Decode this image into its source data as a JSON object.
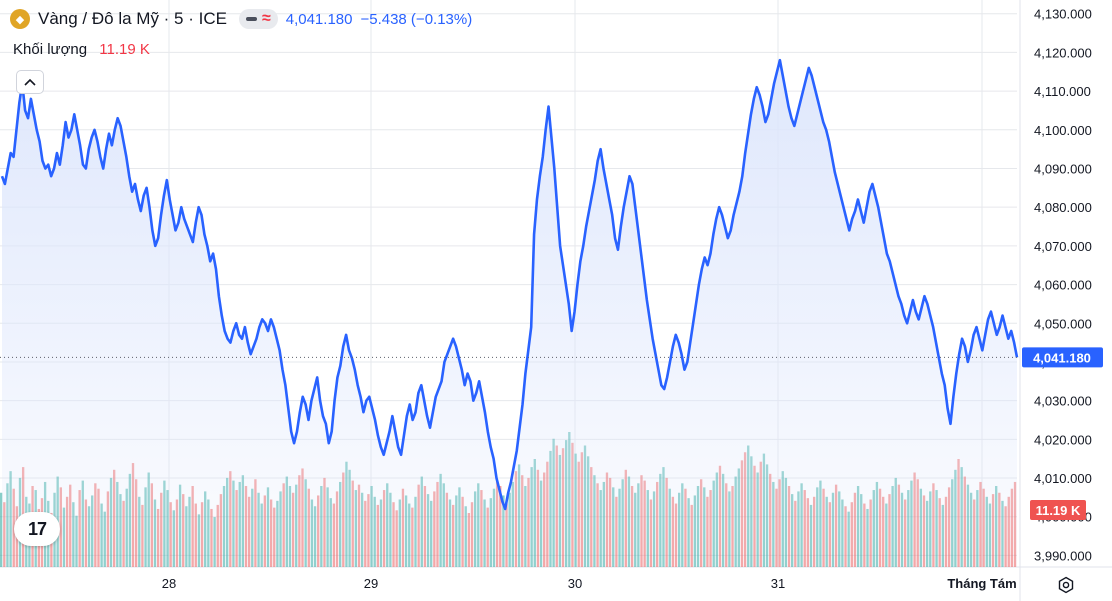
{
  "legend": {
    "symbol_name": "Vàng / Đô la Mỹ · 5 · ICE",
    "last_price": "4,041.180",
    "change": "−5.438 (−0.13%)"
  },
  "volume_legend": {
    "label": "Khối lượng",
    "value": "11.19 K"
  },
  "colors": {
    "price_line": "#2962ff",
    "area_fill": "#dde6fc",
    "volume_up": "#26a69a",
    "volume_down": "#ef5350",
    "grid": "#e6e8ec",
    "axis_text": "#131722"
  },
  "icons": {
    "symbol": "gold-coin-icon",
    "collapse": "chevron-up-icon",
    "logo": "tradingview-logo-icon",
    "settings": "gear-icon"
  },
  "chart_data": {
    "type": "line",
    "title": "Vàng / Đô la Mỹ · 5 · ICE",
    "xlabel": "",
    "ylabel": "",
    "x_ticks": [
      "28",
      "29",
      "30",
      "31",
      "Tháng Tám"
    ],
    "y_ticks": [
      "3,990.000",
      "4,000.000",
      "4,010.000",
      "4,020.000",
      "4,030.000",
      "4,040.000",
      "4,050.000",
      "4,060.000",
      "4,070.000",
      "4,080.000",
      "4,090.000",
      "4,100.000",
      "4,110.000",
      "4,120.000",
      "4,130.000"
    ],
    "ylim": [
      3987,
      4132
    ],
    "grid": true,
    "current_price_label": "4,041.180",
    "current_volume_label": "11.19 K",
    "series": [
      {
        "values": [
          4088,
          4086,
          4090,
          4094,
          4093,
          4100,
          4107,
          4112,
          4105,
          4103,
          4108,
          4104,
          4100,
          4097,
          4092,
          4090,
          4091,
          4088,
          4090,
          4094,
          4091,
          4096,
          4102,
          4098,
          4100,
          4104,
          4100,
          4096,
          4091,
          4090,
          4095,
          4098,
          4100,
          4097,
          4093,
          4090,
          4095,
          4099,
          4096,
          4100,
          4103,
          4101,
          4097,
          4093,
          4088,
          4084,
          4086,
          4082,
          4079,
          4083,
          4085,
          4080,
          4074,
          4070,
          4072,
          4078,
          4083,
          4087,
          4082,
          4078,
          4074,
          4076,
          4080,
          4077,
          4075,
          4073,
          4071,
          4076,
          4080,
          4078,
          4073,
          4070,
          4066,
          4068,
          4064,
          4057,
          4052,
          4048,
          4046,
          4045,
          4048,
          4050,
          4047,
          4046,
          4049,
          4045,
          4042,
          4044,
          4046,
          4049,
          4051,
          4050,
          4048,
          4051,
          4049,
          4046,
          4043,
          4038,
          4034,
          4028,
          4022,
          4019,
          4022,
          4027,
          4031,
          4029,
          4025,
          4030,
          4033,
          4036,
          4030,
          4026,
          4024,
          4019,
          4022,
          4030,
          4036,
          4039,
          4044,
          4047,
          4043,
          4041,
          4038,
          4034,
          4031,
          4027,
          4030,
          4031,
          4028,
          4025,
          4021,
          4018,
          4016,
          4019,
          4022,
          4026,
          4022,
          4018,
          4016,
          4021,
          4026,
          4029,
          4025,
          4027,
          4032,
          4034,
          4030,
          4026,
          4023,
          4027,
          4031,
          4033,
          4035,
          4040,
          4042,
          4044,
          4046,
          4044,
          4041,
          4038,
          4034,
          4037,
          4035,
          4030,
          4032,
          4035,
          4031,
          4027,
          4022,
          4018,
          4015,
          4010,
          4007,
          4004,
          4002,
          4006,
          4009,
          4013,
          4017,
          4023,
          4029,
          4037,
          4043,
          4049,
          4073,
          4082,
          4088,
          4093,
          4100,
          4106,
          4098,
          4090,
          4080,
          4070,
          4065,
          4060,
          4055,
          4048,
          4053,
          4060,
          4066,
          4070,
          4075,
          4079,
          4083,
          4087,
          4092,
          4095,
          4090,
          4086,
          4082,
          4078,
          4072,
          4069,
          4075,
          4080,
          4084,
          4088,
          4086,
          4080,
          4074,
          4068,
          4062,
          4056,
          4051,
          4046,
          4042,
          4038,
          4034,
          4033,
          4036,
          4040,
          4044,
          4047,
          4045,
          4042,
          4038,
          4040,
          4045,
          4050,
          4055,
          4060,
          4064,
          4067,
          4065,
          4068,
          4073,
          4077,
          4080,
          4078,
          4075,
          4072,
          4074,
          4078,
          4081,
          4084,
          4088,
          4094,
          4099,
          4104,
          4108,
          4111,
          4109,
          4106,
          4102,
          4104,
          4108,
          4112,
          4115,
          4118,
          4114,
          4110,
          4106,
          4103,
          4101,
          4104,
          4107,
          4110,
          4113,
          4116,
          4114,
          4111,
          4108,
          4105,
          4102,
          4100,
          4097,
          4093,
          4089,
          4086,
          4083,
          4080,
          4077,
          4074,
          4077,
          4079,
          4082,
          4079,
          4076,
          4080,
          4084,
          4086,
          4083,
          4080,
          4076,
          4072,
          4068,
          4066,
          4063,
          4060,
          4057,
          4055,
          4052,
          4050,
          4053,
          4056,
          4053,
          4051,
          4054,
          4057,
          4055,
          4052,
          4049,
          4045,
          4041,
          4037,
          4034,
          4028,
          4024,
          4031,
          4037,
          4042,
          4046,
          4044,
          4040,
          4043,
          4047,
          4049,
          4046,
          4043,
          4047,
          4051,
          4053,
          4050,
          4047,
          4049,
          4052,
          4049,
          4046,
          4048,
          4045,
          4041.18
        ],
        "color": "#2962ff"
      }
    ],
    "volume": [
      0.55,
      0.48,
      0.62,
      0.71,
      0.58,
      0.45,
      0.66,
      0.74,
      0.52,
      0.47,
      0.6,
      0.57,
      0.43,
      0.51,
      0.63,
      0.49,
      0.4,
      0.55,
      0.67,
      0.59,
      0.44,
      0.52,
      0.61,
      0.48,
      0.38,
      0.57,
      0.64,
      0.5,
      0.45,
      0.53,
      0.62,
      0.58,
      0.47,
      0.41,
      0.56,
      0.66,
      0.72,
      0.63,
      0.54,
      0.49,
      0.58,
      0.69,
      0.77,
      0.65,
      0.52,
      0.46,
      0.59,
      0.7,
      0.62,
      0.5,
      0.43,
      0.55,
      0.64,
      0.57,
      0.48,
      0.42,
      0.5,
      0.61,
      0.54,
      0.45,
      0.52,
      0.6,
      0.47,
      0.39,
      0.48,
      0.56,
      0.5,
      0.43,
      0.37,
      0.46,
      0.54,
      0.6,
      0.66,
      0.71,
      0.64,
      0.57,
      0.63,
      0.68,
      0.6,
      0.52,
      0.58,
      0.65,
      0.55,
      0.47,
      0.53,
      0.59,
      0.5,
      0.44,
      0.49,
      0.56,
      0.62,
      0.67,
      0.6,
      0.55,
      0.61,
      0.68,
      0.73,
      0.65,
      0.58,
      0.5,
      0.45,
      0.53,
      0.6,
      0.66,
      0.59,
      0.51,
      0.47,
      0.56,
      0.63,
      0.7,
      0.78,
      0.72,
      0.64,
      0.57,
      0.61,
      0.55,
      0.49,
      0.54,
      0.6,
      0.52,
      0.46,
      0.5,
      0.57,
      0.62,
      0.55,
      0.48,
      0.42,
      0.5,
      0.58,
      0.53,
      0.47,
      0.44,
      0.52,
      0.61,
      0.67,
      0.6,
      0.54,
      0.49,
      0.56,
      0.63,
      0.69,
      0.62,
      0.55,
      0.5,
      0.46,
      0.53,
      0.59,
      0.52,
      0.45,
      0.4,
      0.48,
      0.56,
      0.62,
      0.57,
      0.5,
      0.44,
      0.51,
      0.58,
      0.64,
      0.6,
      0.53,
      0.47,
      0.55,
      0.63,
      0.71,
      0.76,
      0.68,
      0.6,
      0.66,
      0.74,
      0.8,
      0.72,
      0.64,
      0.7,
      0.78,
      0.86,
      0.95,
      0.9,
      0.83,
      0.88,
      0.94,
      1.0,
      0.92,
      0.84,
      0.78,
      0.85,
      0.9,
      0.82,
      0.74,
      0.68,
      0.62,
      0.57,
      0.63,
      0.7,
      0.66,
      0.59,
      0.52,
      0.58,
      0.65,
      0.72,
      0.67,
      0.6,
      0.55,
      0.62,
      0.68,
      0.64,
      0.57,
      0.5,
      0.56,
      0.63,
      0.69,
      0.74,
      0.66,
      0.58,
      0.52,
      0.47,
      0.55,
      0.62,
      0.58,
      0.51,
      0.46,
      0.53,
      0.6,
      0.65,
      0.59,
      0.52,
      0.57,
      0.64,
      0.7,
      0.75,
      0.69,
      0.62,
      0.56,
      0.6,
      0.67,
      0.73,
      0.79,
      0.85,
      0.9,
      0.82,
      0.75,
      0.7,
      0.78,
      0.84,
      0.76,
      0.69,
      0.63,
      0.58,
      0.65,
      0.71,
      0.66,
      0.6,
      0.54,
      0.49,
      0.56,
      0.62,
      0.57,
      0.51,
      0.46,
      0.52,
      0.59,
      0.64,
      0.58,
      0.52,
      0.48,
      0.55,
      0.61,
      0.56,
      0.5,
      0.45,
      0.41,
      0.48,
      0.55,
      0.6,
      0.54,
      0.47,
      0.43,
      0.5,
      0.57,
      0.63,
      0.58,
      0.52,
      0.47,
      0.54,
      0.6,
      0.66,
      0.61,
      0.55,
      0.5,
      0.57,
      0.64,
      0.7,
      0.65,
      0.58,
      0.53,
      0.49,
      0.56,
      0.62,
      0.57,
      0.51,
      0.46,
      0.52,
      0.59,
      0.65,
      0.72,
      0.8,
      0.74,
      0.67,
      0.61,
      0.55,
      0.5,
      0.57,
      0.63,
      0.58,
      0.52,
      0.47,
      0.54,
      0.6,
      0.55,
      0.49,
      0.45,
      0.52,
      0.58,
      0.63
    ],
    "volume_direction": [
      1,
      0,
      1,
      1,
      0,
      0,
      1,
      0,
      1,
      1,
      0,
      1,
      0,
      0,
      1,
      1,
      0,
      1,
      1,
      0,
      1,
      0,
      0,
      1,
      1,
      0,
      1,
      0,
      1,
      1,
      0,
      0,
      1,
      1,
      0,
      1,
      0,
      1,
      1,
      0,
      1,
      1,
      0,
      0,
      1,
      0,
      1,
      1,
      0,
      1,
      0,
      0,
      1,
      1,
      0,
      1,
      0,
      1,
      0,
      1,
      1,
      0,
      0,
      1,
      0,
      1,
      1,
      0,
      1,
      0,
      0,
      1,
      1,
      0,
      1,
      0,
      1,
      1,
      0,
      0,
      1,
      0,
      1,
      1,
      0,
      1,
      0,
      0,
      1,
      1,
      0,
      1,
      1,
      0,
      1,
      0,
      0,
      1,
      0,
      1,
      1,
      0,
      1,
      0,
      1,
      1,
      0,
      0,
      1,
      0,
      1,
      1,
      0,
      1,
      0,
      1,
      0,
      0,
      1,
      1,
      0,
      1,
      0,
      1,
      1,
      0,
      0,
      1,
      0,
      1,
      1,
      0,
      1,
      0,
      1,
      0,
      1,
      1,
      0,
      0,
      1,
      1,
      0,
      1,
      0,
      1,
      1,
      0,
      1,
      0,
      0,
      1,
      1,
      0,
      1,
      0,
      1,
      1,
      0,
      0,
      1,
      0,
      1,
      1,
      0,
      1,
      0,
      1,
      0,
      1,
      1,
      0,
      1,
      0,
      0,
      1,
      1,
      0,
      1,
      0,
      1,
      1,
      0,
      1,
      0,
      0,
      1,
      1,
      0,
      1,
      0,
      1,
      1,
      0,
      0,
      1,
      0,
      1,
      1,
      0,
      1,
      0,
      1,
      1,
      0,
      0,
      1,
      0,
      1,
      0,
      1,
      1,
      0,
      1,
      0,
      0,
      1,
      1,
      0,
      1,
      0,
      1,
      1,
      0,
      1,
      0,
      0,
      1,
      1,
      0,
      1,
      0,
      1,
      0,
      1,
      1,
      0,
      0,
      1,
      1,
      0,
      1,
      0,
      1,
      1,
      0,
      1,
      0,
      0,
      1,
      1,
      0,
      1,
      0,
      1,
      1,
      0,
      0,
      1,
      0,
      1,
      1,
      0,
      1,
      0,
      1,
      0,
      1,
      1,
      0,
      1,
      0,
      0,
      1,
      1,
      0,
      1,
      0,
      1,
      1,
      0,
      0,
      1,
      0,
      1,
      1,
      0,
      1,
      0,
      1,
      1,
      0,
      0,
      1,
      0,
      1,
      1,
      0,
      1,
      0,
      1,
      0,
      0,
      1,
      1,
      0,
      1,
      0,
      1,
      1,
      0,
      1,
      0,
      0,
      1,
      1,
      0,
      1,
      0,
      1,
      0
    ]
  }
}
